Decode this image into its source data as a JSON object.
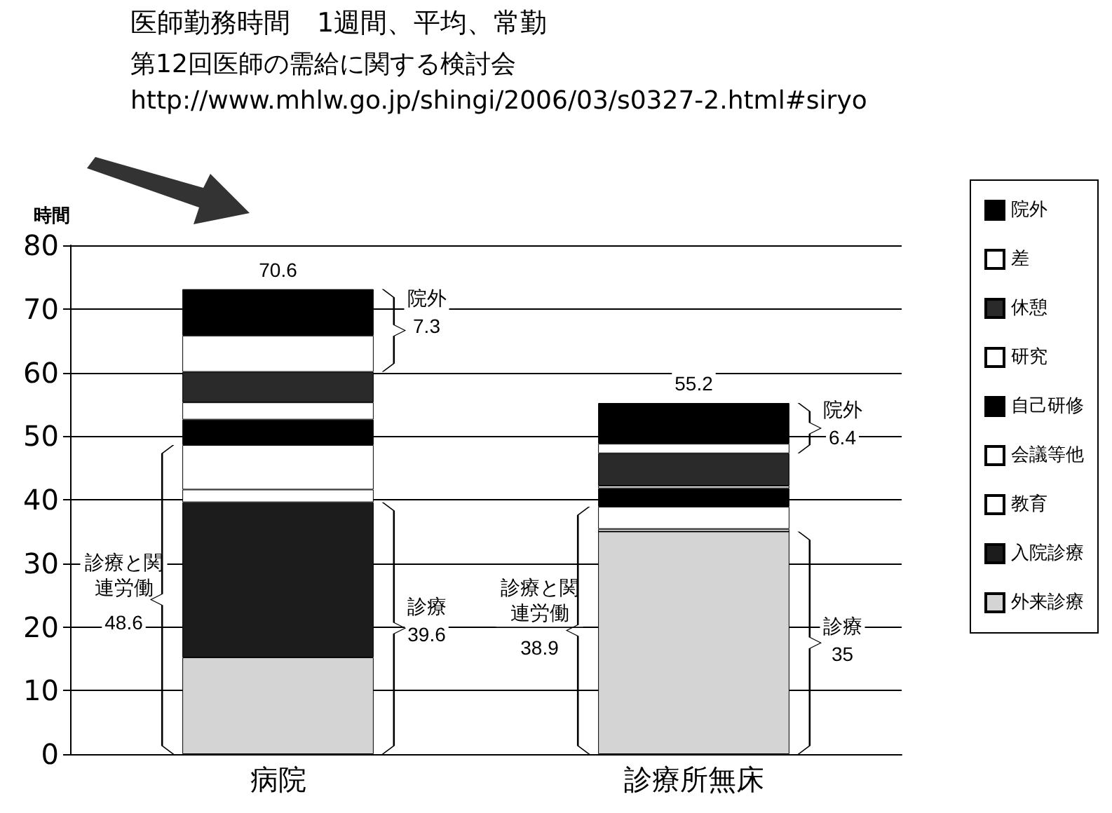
{
  "chart_data": {
    "type": "bar",
    "stacked": true,
    "title": "医師勤務時間　1週間、平均、常勤",
    "subtitle": "第12回医師の需給に関する検討会\nhttp://www.mhlw.go.jp/shingi/2006/03/s0327-2.html#siryo",
    "ylabel": "時間",
    "categories": [
      "病院",
      "診療所無床"
    ],
    "series": [
      {
        "name": "外来診療",
        "color": "#d4d4d4",
        "values": [
          15.2,
          35
        ]
      },
      {
        "name": "入院診療",
        "color": "#1c1c1c",
        "values": [
          24.4,
          0
        ]
      },
      {
        "name": "教育",
        "color": "#ffffff",
        "values": [
          2.0,
          0.4
        ]
      },
      {
        "name": "会議等他",
        "color": "#ffffff",
        "values": [
          7.0,
          3.5
        ]
      },
      {
        "name": "自己研修",
        "color": "#000000",
        "values": [
          4.0,
          2.9
        ]
      },
      {
        "name": "研究",
        "color": "#ffffff",
        "values": [
          2.7,
          0.4
        ]
      },
      {
        "name": "休憩",
        "color": "#2a2a2a",
        "values": [
          4.8,
          5.1
        ]
      },
      {
        "name": "差",
        "color": "#ffffff",
        "values": [
          5.7,
          1.5
        ]
      },
      {
        "name": "院外",
        "color": "#000000",
        "values": [
          7.3,
          6.4
        ]
      }
    ],
    "annotations": [
      "70.6",
      "院外",
      "7.3",
      "診療と関連労働",
      "48.6",
      "診療",
      "39.6",
      "55.2",
      "院外",
      "6.4",
      "診療と関連労働",
      "38.9",
      "診療",
      "35"
    ],
    "ylim": [
      0,
      80
    ],
    "yticks": [
      0,
      10,
      20,
      30,
      40,
      50,
      60,
      70,
      80
    ],
    "grid": "y",
    "legend": "right"
  }
}
